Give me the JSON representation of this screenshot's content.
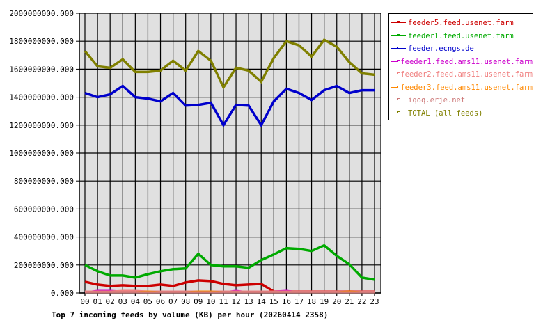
{
  "chart_data": {
    "type": "line",
    "title": "Top 7 incoming feeds by volume (KB) per hour (20260414 2358)",
    "xlabel": "",
    "ylabel": "",
    "ylim": [
      0,
      2000000000
    ],
    "yticks": [
      "0.000",
      "200000000.000",
      "400000000.000",
      "600000000.000",
      "800000000.000",
      "1000000000.000",
      "1200000000.000",
      "1400000000.000",
      "1600000000.000",
      "1800000000.000",
      "2000000000.000"
    ],
    "categories": [
      "00",
      "01",
      "02",
      "03",
      "04",
      "05",
      "06",
      "07",
      "08",
      "09",
      "10",
      "11",
      "12",
      "13",
      "14",
      "15",
      "16",
      "17",
      "18",
      "19",
      "20",
      "21",
      "22",
      "23"
    ],
    "grid": true,
    "legend_position": "right",
    "series": [
      {
        "name": "feeder5.feed.usenet.farm",
        "color": "#cc0000",
        "values": [
          80000000,
          60000000,
          50000000,
          55000000,
          50000000,
          50000000,
          60000000,
          50000000,
          75000000,
          90000000,
          85000000,
          65000000,
          55000000,
          60000000,
          65000000,
          10000000,
          10000000,
          10000000,
          10000000,
          10000000,
          10000000,
          10000000,
          10000000,
          10000000
        ]
      },
      {
        "name": "feeder1.feed.usenet.farm",
        "color": "#00aa00",
        "values": [
          200000000,
          155000000,
          125000000,
          125000000,
          110000000,
          135000000,
          155000000,
          170000000,
          175000000,
          280000000,
          200000000,
          190000000,
          190000000,
          180000000,
          235000000,
          275000000,
          320000000,
          315000000,
          300000000,
          340000000,
          265000000,
          205000000,
          110000000,
          95000000
        ]
      },
      {
        "name": "feeder.ecngs.de",
        "color": "#0000cc",
        "values": [
          1430000000,
          1400000000,
          1420000000,
          1480000000,
          1400000000,
          1390000000,
          1370000000,
          1430000000,
          1340000000,
          1345000000,
          1360000000,
          1200000000,
          1345000000,
          1340000000,
          1200000000,
          1370000000,
          1460000000,
          1430000000,
          1380000000,
          1450000000,
          1480000000,
          1430000000,
          1450000000,
          1450000000
        ]
      },
      {
        "name": "feeder1.feed.ams11.usenet.farm",
        "color": "#cc00cc",
        "values": [
          5000000,
          15000000,
          15000000,
          10000000,
          10000000,
          5000000,
          10000000,
          10000000,
          5000000,
          5000000,
          5000000,
          5000000,
          15000000,
          5000000,
          5000000,
          10000000,
          15000000,
          5000000,
          5000000,
          5000000,
          5000000,
          5000000,
          5000000,
          5000000
        ]
      },
      {
        "name": "feeder2.feed.ams11.usenet.farm",
        "color": "#f08080",
        "values": [
          10000000,
          10000000,
          10000000,
          15000000,
          15000000,
          10000000,
          10000000,
          10000000,
          10000000,
          10000000,
          10000000,
          10000000,
          10000000,
          10000000,
          10000000,
          10000000,
          10000000,
          10000000,
          10000000,
          10000000,
          10000000,
          10000000,
          10000000,
          10000000
        ]
      },
      {
        "name": "feeder3.feed.ams11.usenet.farm",
        "color": "#ff8800",
        "values": [
          5000000,
          5000000,
          5000000,
          5000000,
          5000000,
          10000000,
          5000000,
          5000000,
          5000000,
          10000000,
          10000000,
          5000000,
          5000000,
          5000000,
          5000000,
          5000000,
          5000000,
          5000000,
          5000000,
          5000000,
          5000000,
          10000000,
          5000000,
          5000000
        ]
      },
      {
        "name": "iqoq.erje.net",
        "color": "#cc7777",
        "values": [
          5000000,
          5000000,
          5000000,
          5000000,
          5000000,
          5000000,
          5000000,
          5000000,
          5000000,
          5000000,
          5000000,
          5000000,
          5000000,
          5000000,
          5000000,
          5000000,
          5000000,
          5000000,
          5000000,
          5000000,
          5000000,
          5000000,
          5000000,
          5000000
        ]
      },
      {
        "name": "TOTAL (all feeds)",
        "color": "#808000",
        "values": [
          1730000000,
          1620000000,
          1610000000,
          1670000000,
          1580000000,
          1580000000,
          1590000000,
          1660000000,
          1590000000,
          1730000000,
          1660000000,
          1470000000,
          1610000000,
          1590000000,
          1510000000,
          1680000000,
          1800000000,
          1770000000,
          1690000000,
          1810000000,
          1760000000,
          1650000000,
          1570000000,
          1560000000
        ]
      }
    ]
  },
  "legend": {
    "items": [
      {
        "label": "feeder5.feed.usenet.farm",
        "color": "#cc0000"
      },
      {
        "label": "feeder1.feed.usenet.farm",
        "color": "#00aa00"
      },
      {
        "label": "feeder.ecngs.de",
        "color": "#0000cc"
      },
      {
        "label": "feeder1.feed.ams11.usenet.farm",
        "color": "#cc00cc"
      },
      {
        "label": "feeder2.feed.ams11.usenet.farm",
        "color": "#f08080"
      },
      {
        "label": "feeder3.feed.ams11.usenet.farm",
        "color": "#ff8800"
      },
      {
        "label": "iqoq.erje.net",
        "color": "#cc7777"
      },
      {
        "label": "TOTAL (all feeds)",
        "color": "#808000"
      }
    ]
  },
  "colors": {
    "plot_bg": "#e0e0e0",
    "grid": "#000000",
    "axis": "#000000"
  }
}
